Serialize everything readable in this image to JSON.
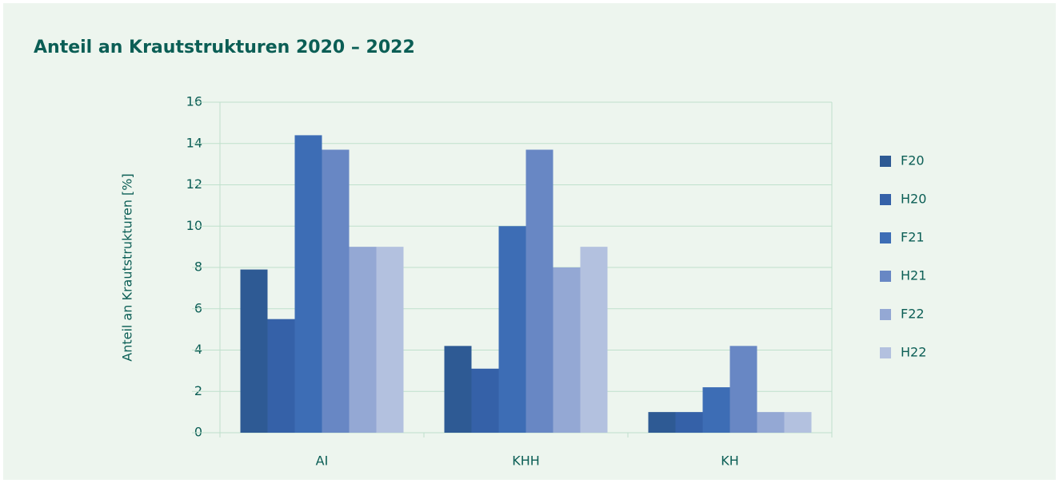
{
  "chart_data": {
    "type": "bar",
    "title": "Anteil an Krautstrukturen 2020 – 2022",
    "y_label": "Anteil an Krautstrukturen [%]",
    "categories": [
      "AI",
      "KHH",
      "KH"
    ],
    "series": [
      {
        "name": "F20",
        "color": "#2e5a94",
        "values": [
          7.9,
          4.2,
          1
        ]
      },
      {
        "name": "H20",
        "color": "#3561a8",
        "values": [
          5.5,
          3.1,
          1
        ]
      },
      {
        "name": "F21",
        "color": "#3d6db5",
        "values": [
          14.4,
          10,
          2.2
        ]
      },
      {
        "name": "H21",
        "color": "#6887c4",
        "values": [
          13.7,
          13.7,
          4.2
        ]
      },
      {
        "name": "F22",
        "color": "#94a8d4",
        "values": [
          9,
          8,
          1
        ]
      },
      {
        "name": "H22",
        "color": "#b3c1df",
        "values": [
          9,
          9,
          1
        ]
      }
    ],
    "ylim": [
      0,
      16
    ],
    "yticks": [
      0,
      2,
      4,
      6,
      8,
      10,
      12,
      14,
      16
    ],
    "grid": true,
    "legend": "right"
  }
}
